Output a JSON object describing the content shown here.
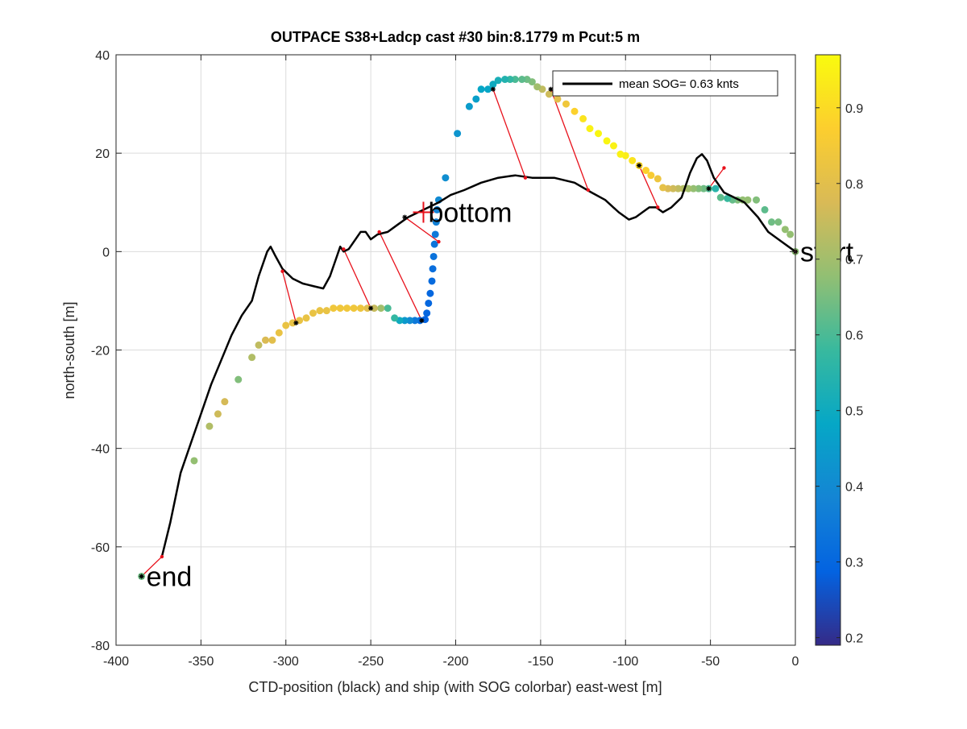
{
  "chart_data": {
    "type": "scatter",
    "title": "OUTPACE S38+Ladcp cast #30 bin:8.1779 m  Pcut:5 m",
    "xlabel": "CTD-position (black) and ship (with SOG colorbar) east-west [m]",
    "ylabel": "north-south [m]",
    "xlim": [
      -400,
      0
    ],
    "ylim": [
      -80,
      40
    ],
    "xticks": [
      -400,
      -350,
      -300,
      -250,
      -200,
      -150,
      -100,
      -50,
      0
    ],
    "yticks": [
      -80,
      -60,
      -40,
      -20,
      0,
      20,
      40
    ],
    "grid": true,
    "legend": {
      "position": "top-right",
      "entries": [
        "mean SOG=  0.63 knts"
      ]
    },
    "colorbar": {
      "min": 0.19,
      "max": 0.97,
      "ticks": [
        0.2,
        0.3,
        0.4,
        0.5,
        0.6,
        0.7,
        0.8,
        0.9
      ],
      "colors": [
        "#352a87",
        "#0363e1",
        "#1485d4",
        "#06a7c6",
        "#38b99e",
        "#92bf73",
        "#d9ba56",
        "#fcce2e",
        "#f9fb0e"
      ]
    },
    "annotations": [
      {
        "text": "start",
        "x": 0,
        "y": 0
      },
      {
        "text": "bottom",
        "x": -219,
        "y": 8
      },
      {
        "text": "end",
        "x": -385,
        "y": -66
      }
    ],
    "ctd_track": {
      "name": "CTD-position (black)",
      "x": [
        0,
        -8,
        -16,
        -22,
        -30,
        -36,
        -42,
        -48,
        -52,
        -55,
        -58,
        -62,
        -67,
        -73,
        -78,
        -82,
        -86,
        -90,
        -94,
        -98,
        -104,
        -112,
        -120,
        -130,
        -142,
        -155,
        -165,
        -175,
        -185,
        -195,
        -203,
        -210,
        -216,
        -222,
        -228,
        -234,
        -240,
        -246,
        -250,
        -253,
        -256,
        -259,
        -263,
        -266,
        -268,
        -270,
        -274,
        -278,
        -284,
        -290,
        -296,
        -302,
        -306,
        -309,
        -311,
        -316,
        -320,
        -326,
        -332,
        -338,
        -344,
        -350,
        -356,
        -362,
        -368,
        -373
      ],
      "y": [
        0,
        2,
        4,
        7,
        10,
        11,
        12,
        15,
        18.5,
        19.8,
        19,
        16,
        11,
        9,
        8,
        9,
        9,
        8,
        7,
        6.5,
        8,
        10.5,
        12,
        14,
        15,
        15,
        15.5,
        15,
        14,
        12.5,
        11.5,
        10,
        9,
        8,
        7,
        5.5,
        4,
        3.5,
        2.5,
        4,
        4,
        2.5,
        0.5,
        0,
        1,
        -1,
        -5,
        -7.5,
        -7,
        -6.5,
        -5.5,
        -3.5,
        -1,
        1,
        0,
        -5,
        -10,
        -13,
        -17,
        -22,
        -27,
        -33,
        -39,
        -45,
        -55,
        -62
      ]
    },
    "ship_track": {
      "name": "ship (with SOG colorbar)",
      "x": [
        0,
        -3,
        -6,
        -10,
        -14,
        -18,
        -23,
        -28,
        -31,
        -34,
        -37,
        -40,
        -44,
        -47,
        -51,
        -54,
        -57,
        -60,
        -63,
        -66,
        -69,
        -72,
        -75,
        -78,
        -81,
        -85,
        -88,
        -92,
        -96,
        -100,
        -103,
        -107,
        -111,
        -116,
        -121,
        -125,
        -130,
        -135,
        -140,
        -145,
        -149,
        -152,
        -155,
        -158,
        -161,
        -165,
        -168,
        -171,
        -175,
        -178,
        -181,
        -185,
        -188,
        -192,
        -199,
        -206,
        -210,
        -211,
        -211.5,
        -212,
        -212.5,
        -213,
        -213.5,
        -214,
        -215,
        -216,
        -217,
        -218,
        -221,
        -224,
        -227,
        -230,
        -233,
        -236,
        -240,
        -244,
        -248,
        -252,
        -256,
        -260,
        -264,
        -268,
        -272,
        -276,
        -280,
        -284,
        -288,
        -292,
        -296,
        -300,
        -304,
        -308,
        -312,
        -316,
        -320,
        -328,
        -336,
        -340,
        -345,
        -354,
        -385
      ],
      "y": [
        0,
        3.5,
        4.5,
        6,
        6,
        8.5,
        10.5,
        10.5,
        10.5,
        10.5,
        10.5,
        10.8,
        11,
        12.8,
        12.8,
        12.8,
        12.8,
        12.8,
        12.8,
        12.8,
        12.8,
        12.8,
        12.8,
        13,
        14.8,
        15.5,
        16.5,
        17.5,
        18.5,
        19.5,
        19.8,
        21.5,
        22.5,
        24,
        25,
        27,
        28.5,
        30,
        31,
        32,
        33,
        33.5,
        34.5,
        35,
        35,
        35,
        35,
        35,
        34.8,
        34,
        33,
        33,
        31,
        29.5,
        24,
        15,
        10.5,
        8.5,
        6,
        3.5,
        1.5,
        -1,
        -3.5,
        -6,
        -8.5,
        -10.5,
        -12.5,
        -13.8,
        -14,
        -14,
        -14,
        -14,
        -14,
        -13.5,
        -11.5,
        -11.5,
        -11.5,
        -11.5,
        -11.5,
        -11.5,
        -11.5,
        -11.5,
        -11.5,
        -12,
        -12,
        -12.5,
        -13.5,
        -14,
        -14.5,
        -15,
        -16.5,
        -18,
        -18,
        -19,
        -21.5,
        -26,
        -30.5,
        -33,
        -35.5,
        -42.5,
        -66
      ],
      "sog": [
        0.67,
        0.68,
        0.68,
        0.65,
        0.64,
        0.62,
        0.66,
        0.68,
        0.68,
        0.66,
        0.63,
        0.58,
        0.62,
        0.55,
        0.6,
        0.64,
        0.66,
        0.68,
        0.7,
        0.72,
        0.74,
        0.76,
        0.78,
        0.81,
        0.83,
        0.86,
        0.88,
        0.89,
        0.92,
        0.94,
        0.95,
        0.95,
        0.96,
        0.96,
        0.95,
        0.92,
        0.88,
        0.84,
        0.8,
        0.76,
        0.74,
        0.7,
        0.66,
        0.64,
        0.62,
        0.6,
        0.57,
        0.54,
        0.52,
        0.5,
        0.48,
        0.48,
        0.46,
        0.45,
        0.43,
        0.41,
        0.4,
        0.38,
        0.37,
        0.35,
        0.34,
        0.33,
        0.32,
        0.31,
        0.3,
        0.3,
        0.3,
        0.29,
        0.31,
        0.35,
        0.4,
        0.44,
        0.5,
        0.57,
        0.6,
        0.7,
        0.75,
        0.8,
        0.83,
        0.84,
        0.84,
        0.84,
        0.84,
        0.82,
        0.82,
        0.82,
        0.82,
        0.82,
        0.82,
        0.82,
        0.82,
        0.8,
        0.78,
        0.74,
        0.72,
        0.66,
        0.77,
        0.76,
        0.72,
        0.68,
        0.64
      ]
    },
    "connections": [
      {
        "ctd": [
          0,
          0
        ],
        "ship": [
          0,
          0
        ]
      },
      {
        "ctd": [
          -42,
          17
        ],
        "ship": [
          -51,
          12.8
        ]
      },
      {
        "ctd": [
          -81,
          9
        ],
        "ship": [
          -92,
          17.5
        ]
      },
      {
        "ctd": [
          -122,
          12.5
        ],
        "ship": [
          -144,
          33
        ]
      },
      {
        "ctd": [
          -159,
          15
        ],
        "ship": [
          -178,
          33
        ]
      },
      {
        "ctd": [
          -210,
          2
        ],
        "ship": [
          -230,
          7
        ]
      },
      {
        "ctd": [
          -245,
          4
        ],
        "ship": [
          -220,
          -14
        ]
      },
      {
        "ctd": [
          -266,
          0.5
        ],
        "ship": [
          -250,
          -11.5
        ]
      },
      {
        "ctd": [
          -302,
          -4
        ],
        "ship": [
          -294,
          -14.5
        ]
      },
      {
        "ctd": [
          -373,
          -62
        ],
        "ship": [
          -385,
          -66
        ]
      }
    ]
  }
}
